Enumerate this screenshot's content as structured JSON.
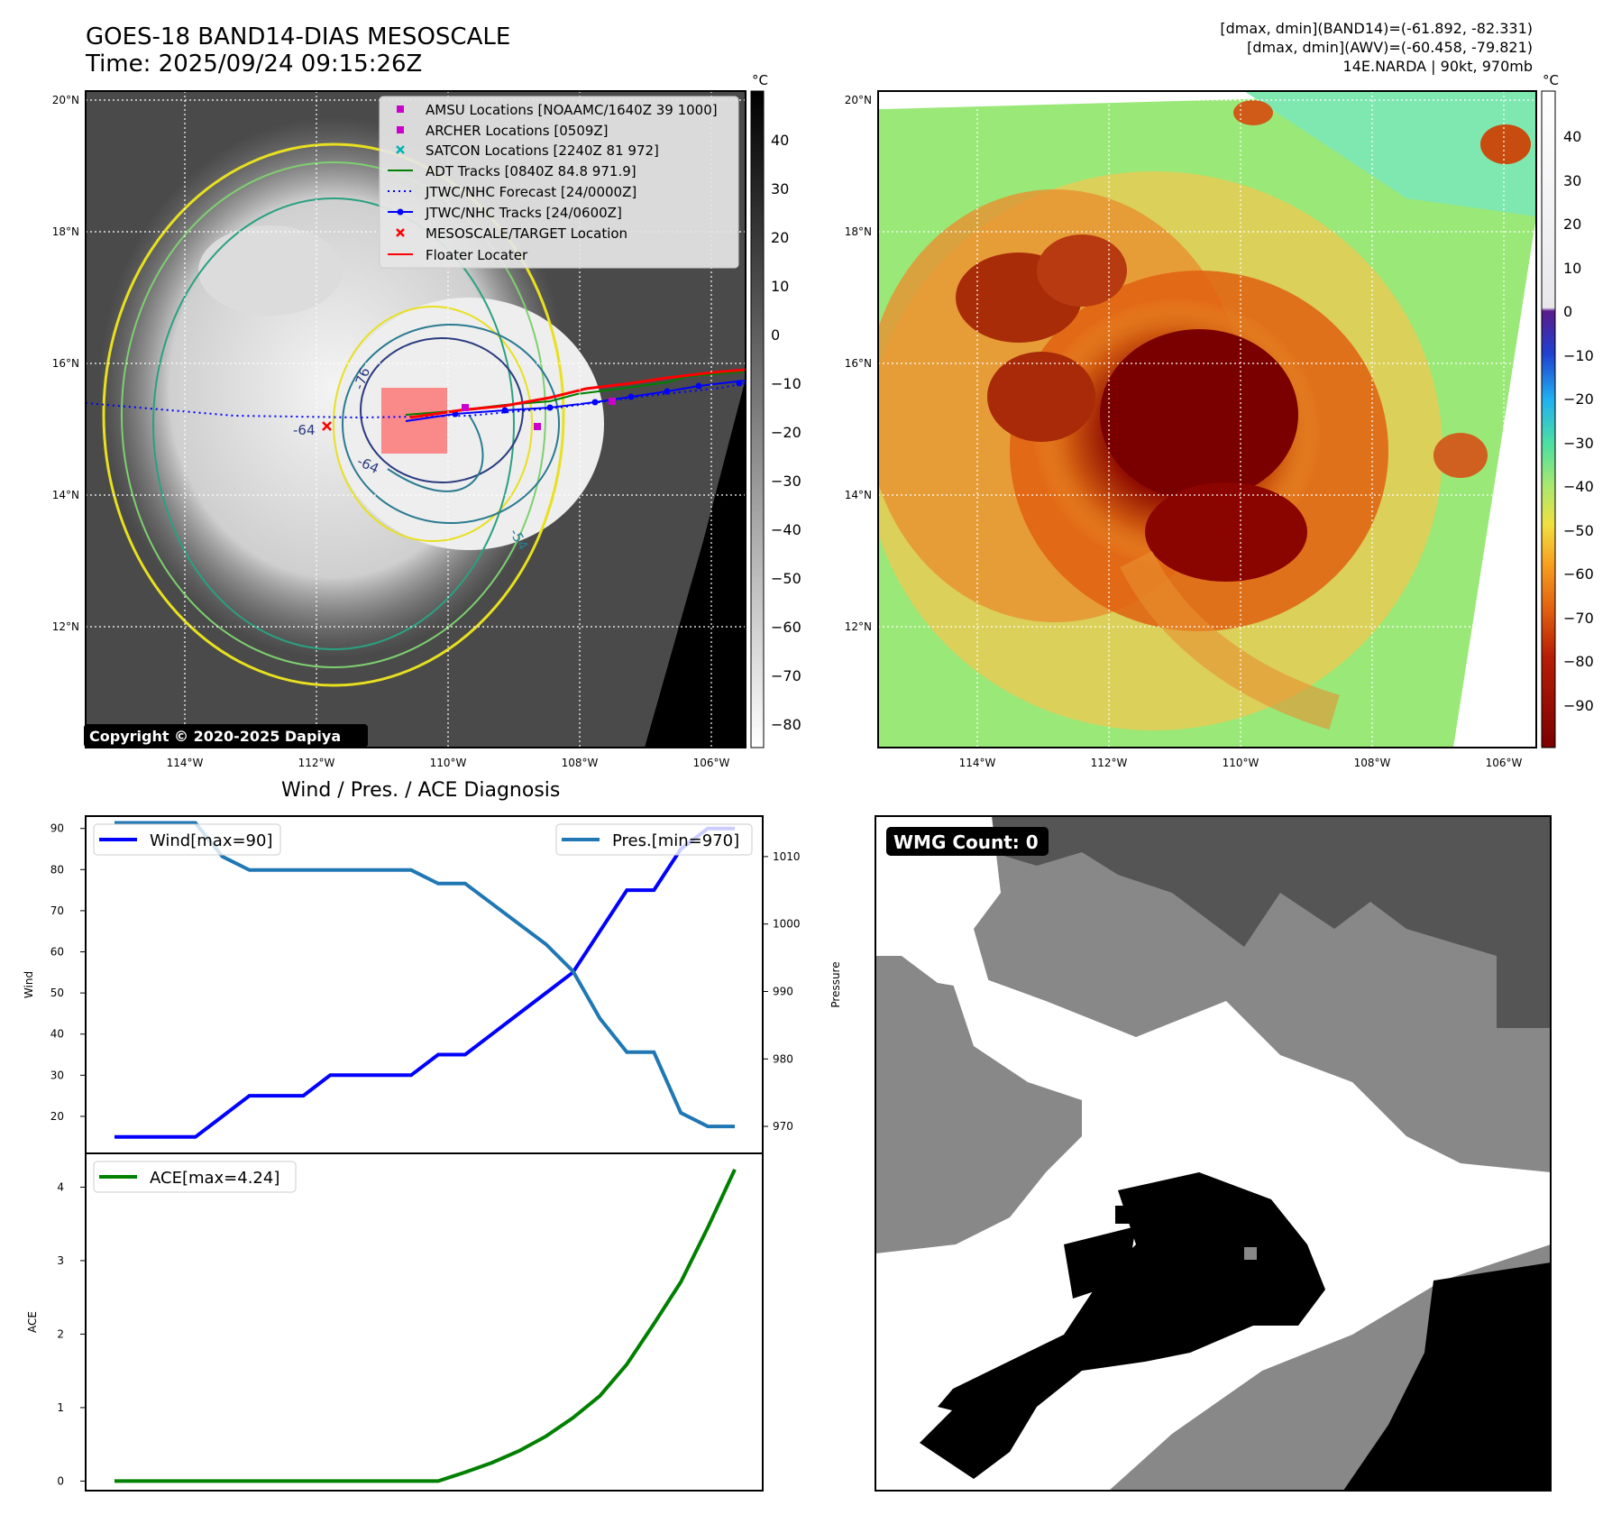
{
  "header": {
    "title_line1": "GOES-18 BAND14-DIAS MESOSCALE",
    "title_line2": "Time: 2025/09/24 09:15:26Z",
    "stats_line1": "[dmax, dmin](BAND14)=(-61.892, -82.331)",
    "stats_line2": "[dmax, dmin](AWV)=(-60.458, -79.821)",
    "stats_line3": "14E.NARDA | 90kt, 970mb"
  },
  "ir_panel": {
    "lat_ticks": [
      "20°N",
      "18°N",
      "16°N",
      "14°N",
      "12°N"
    ],
    "lon_ticks": [
      "114°W",
      "112°W",
      "110°W",
      "108°W",
      "106°W"
    ],
    "colorbar_unit": "°C",
    "colorbar_ticks": [
      "40",
      "30",
      "20",
      "10",
      "0",
      "−10",
      "−20",
      "−30",
      "−40",
      "−50",
      "−60",
      "−70",
      "−80"
    ],
    "contour_labels": [
      "-76",
      "-64",
      "-64",
      "-54"
    ],
    "copyright": "Copyright © 2020-2025 Dapiya",
    "legend": [
      {
        "label": "AMSU Locations [NOAAMC/1640Z 39 1000]",
        "color": "#cc00cc"
      },
      {
        "label": "ARCHER Locations [0509Z]",
        "color": "#cc00cc"
      },
      {
        "label": "SATCON Locations [2240Z 81 972]",
        "color": "#00b3b3"
      },
      {
        "label": "ADT Tracks [0840Z 84.8 971.9]",
        "color": "#008000"
      },
      {
        "label": "JTWC/NHC Forecast [24/0000Z]",
        "color": "#0000ff"
      },
      {
        "label": "JTWC/NHC Tracks [24/0600Z]",
        "color": "#0000ff"
      },
      {
        "label": "MESOSCALE/TARGET Location",
        "color": "#ff0000"
      },
      {
        "label": "Floater Locater",
        "color": "#ff0000"
      }
    ]
  },
  "awv_panel": {
    "lat_ticks": [
      "20°N",
      "18°N",
      "16°N",
      "14°N",
      "12°N"
    ],
    "lon_ticks": [
      "114°W",
      "112°W",
      "110°W",
      "108°W",
      "106°W"
    ],
    "colorbar_unit": "°C",
    "colorbar_ticks": [
      "40",
      "30",
      "20",
      "10",
      "0",
      "−10",
      "−20",
      "−30",
      "−40",
      "−50",
      "−60",
      "−70",
      "−80",
      "−90"
    ]
  },
  "diag_panel": {
    "title": "Wind / Pres. / ACE Diagnosis"
  },
  "wmg_panel": {
    "badge": "WMG Count: 0"
  },
  "chart_data": [
    {
      "type": "line",
      "xlabel": "",
      "ylabel": "Wind",
      "y2label": "Pressure",
      "ylim": [
        11,
        93
      ],
      "y2lim": [
        966,
        1016
      ],
      "yticks": [
        20,
        30,
        40,
        50,
        60,
        70,
        80,
        90
      ],
      "y2ticks": [
        970,
        980,
        990,
        1000,
        1010
      ],
      "x": [
        0,
        1,
        2,
        3,
        4,
        5,
        6,
        7,
        8,
        9,
        10,
        11,
        12,
        13,
        14,
        15,
        16,
        17,
        18,
        19,
        20,
        21,
        22,
        23
      ],
      "series": [
        {
          "name": "Wind[max=90]",
          "axis": "left",
          "color": "#0000ff",
          "values": [
            15,
            15,
            15,
            15,
            20,
            25,
            25,
            25,
            30,
            30,
            30,
            30,
            35,
            35,
            40,
            45,
            50,
            55,
            65,
            75,
            75,
            85,
            90,
            90
          ]
        },
        {
          "name": "Pres.[min=970]",
          "axis": "right",
          "color": "#1f77b4",
          "values": [
            1015,
            1015,
            1015,
            1015,
            1010,
            1008,
            1008,
            1008,
            1008,
            1008,
            1008,
            1008,
            1006,
            1006,
            1003,
            1000,
            997,
            993,
            986,
            981,
            981,
            972,
            970,
            970
          ]
        }
      ],
      "legend": [
        "upper-left",
        "upper-right"
      ]
    },
    {
      "type": "line",
      "xlabel": "",
      "ylabel": "ACE",
      "ylim": [
        -0.13,
        4.46
      ],
      "yticks": [
        0,
        1,
        2,
        3,
        4
      ],
      "x": [
        0,
        1,
        2,
        3,
        4,
        5,
        6,
        7,
        8,
        9,
        10,
        11,
        12,
        13,
        14,
        15,
        16,
        17,
        18,
        19,
        20,
        21,
        22,
        23
      ],
      "series": [
        {
          "name": "ACE[max=4.24]",
          "color": "#008000",
          "values": [
            0,
            0,
            0,
            0,
            0,
            0,
            0,
            0,
            0,
            0,
            0,
            0,
            0,
            0.12,
            0.25,
            0.41,
            0.61,
            0.86,
            1.16,
            1.59,
            2.14,
            2.71,
            3.45,
            4.24
          ]
        }
      ],
      "legend": "upper-left"
    }
  ]
}
